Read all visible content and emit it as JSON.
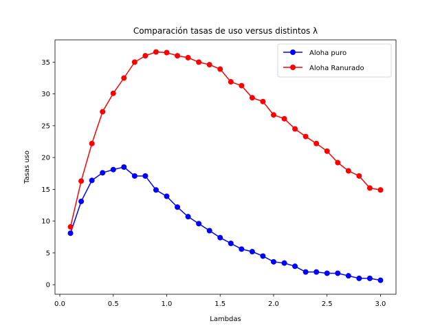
{
  "chart_data": {
    "type": "line",
    "title": "Comparación tasas de uso versus distintos λ",
    "xlabel": "Lambdas",
    "ylabel": "Tasas uso",
    "xlim": [
      -0.045,
      3.145
    ],
    "ylim": [
      -1.5,
      38.5
    ],
    "xticks": [
      0.0,
      0.5,
      1.0,
      1.5,
      2.0,
      2.5,
      3.0
    ],
    "xtick_labels": [
      "0.0",
      "0.5",
      "1.0",
      "1.5",
      "2.0",
      "2.5",
      "3.0"
    ],
    "yticks": [
      0,
      5,
      10,
      15,
      20,
      25,
      30,
      35
    ],
    "ytick_labels": [
      "0",
      "5",
      "10",
      "15",
      "20",
      "25",
      "30",
      "35"
    ],
    "grid": false,
    "legend_position": "top-right",
    "x": [
      0.1,
      0.2,
      0.3,
      0.4,
      0.5,
      0.6,
      0.7,
      0.8,
      0.9,
      1.0,
      1.1,
      1.2,
      1.3,
      1.4,
      1.5,
      1.6,
      1.7,
      1.8,
      1.9,
      2.0,
      2.1,
      2.2,
      2.3,
      2.4,
      2.5,
      2.6,
      2.7,
      2.8,
      2.9,
      3.0
    ],
    "series": [
      {
        "name": "Aloha puro",
        "color": "#0000ff",
        "marker": "circle",
        "values": [
          8.1,
          13.1,
          16.4,
          17.6,
          18.1,
          18.5,
          17.1,
          17.1,
          14.9,
          13.9,
          12.2,
          10.7,
          9.6,
          8.5,
          7.4,
          6.5,
          5.6,
          5.2,
          4.5,
          3.6,
          3.4,
          2.9,
          2.0,
          2.0,
          1.8,
          1.8,
          1.4,
          1.0,
          1.0,
          0.7
        ]
      },
      {
        "name": "Aloha Ranurado",
        "color": "#ff0000",
        "marker": "circle",
        "values": [
          9.1,
          16.3,
          22.2,
          27.2,
          30.1,
          32.5,
          35.0,
          36.0,
          36.6,
          36.5,
          36.0,
          35.7,
          35.0,
          34.6,
          33.9,
          31.9,
          31.3,
          29.4,
          28.8,
          26.7,
          26.1,
          24.5,
          23.3,
          22.2,
          21.0,
          19.2,
          17.9,
          17.1,
          15.2,
          14.9
        ]
      }
    ]
  }
}
